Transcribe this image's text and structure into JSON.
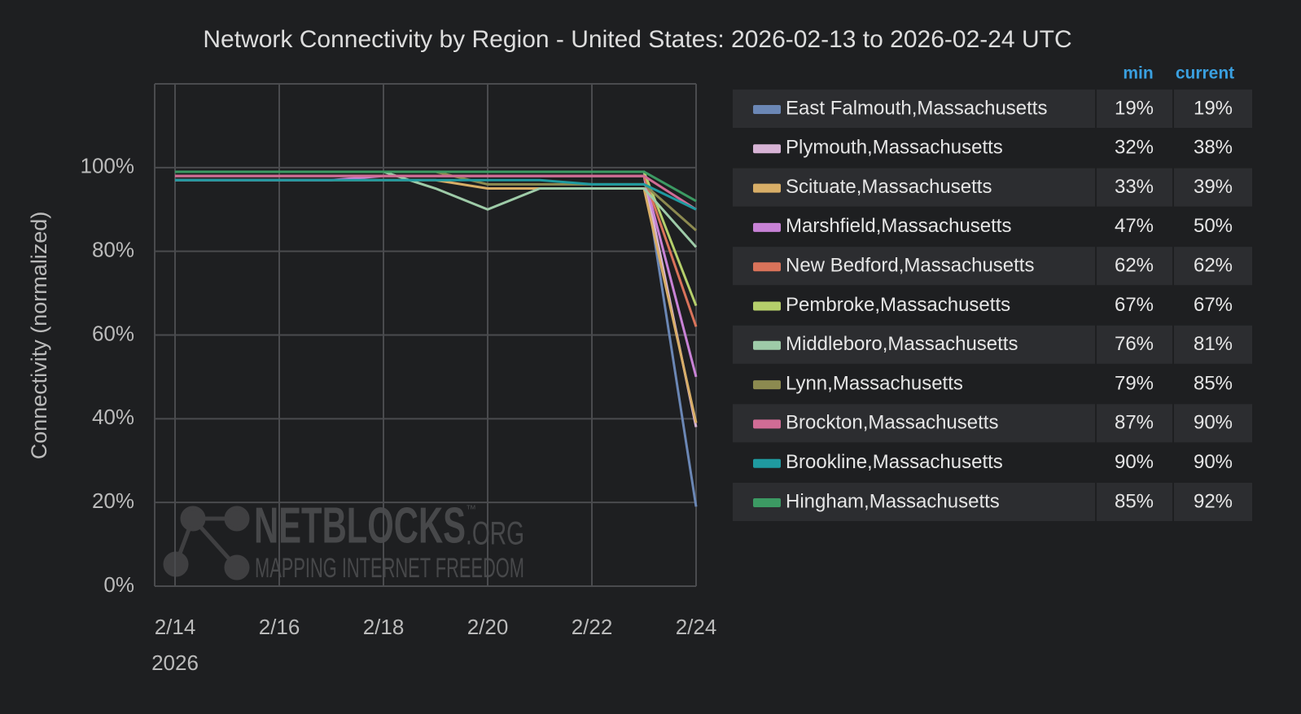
{
  "chart_data": {
    "type": "line",
    "title": "Network Connectivity by Region - United States: 2026-02-13 to 2026-02-24 UTC",
    "ylabel": "Connectivity (normalized)",
    "x_year_label": "2026",
    "x": [
      "2026-02-14",
      "2026-02-15",
      "2026-02-16",
      "2026-02-17",
      "2026-02-18",
      "2026-02-19",
      "2026-02-20",
      "2026-02-21",
      "2026-02-22",
      "2026-02-23",
      "2026-02-24"
    ],
    "xlim": [
      "2026-02-14",
      "2026-02-24"
    ],
    "xticks": [
      {
        "value": "2026-02-14",
        "label": "2/14"
      },
      {
        "value": "2026-02-16",
        "label": "2/16"
      },
      {
        "value": "2026-02-18",
        "label": "2/18"
      },
      {
        "value": "2026-02-20",
        "label": "2/20"
      },
      {
        "value": "2026-02-22",
        "label": "2/22"
      },
      {
        "value": "2026-02-24",
        "label": "2/24"
      }
    ],
    "ylim": [
      0,
      120
    ],
    "yticks": [
      {
        "value": 0,
        "label": "0%"
      },
      {
        "value": 20,
        "label": "20%"
      },
      {
        "value": 40,
        "label": "40%"
      },
      {
        "value": 60,
        "label": "60%"
      },
      {
        "value": 80,
        "label": "80%"
      },
      {
        "value": 100,
        "label": "100%"
      }
    ],
    "grid": true,
    "legend_columns": [
      "min",
      "current"
    ],
    "watermark": {
      "name": "NETBLOCKS",
      "tm": "™",
      "suffix": ".ORG",
      "tagline": "MAPPING INTERNET FREEDOM"
    },
    "series": [
      {
        "name": "East Falmouth,Massachusetts",
        "color": "#6b87b5",
        "min": "19%",
        "current": "19%",
        "values": [
          99,
          99,
          99,
          99,
          99,
          99,
          99,
          99,
          99,
          99,
          19
        ]
      },
      {
        "name": "Plymouth,Massachusetts",
        "color": "#d7b3d5",
        "min": "32%",
        "current": "38%",
        "values": [
          98,
          98,
          98,
          98,
          98,
          98,
          98,
          98,
          98,
          98,
          38
        ]
      },
      {
        "name": "Scituate,Massachusetts",
        "color": "#d8ae67",
        "min": "33%",
        "current": "39%",
        "values": [
          97,
          97,
          97,
          97,
          97,
          97,
          95,
          95,
          95,
          95,
          39
        ]
      },
      {
        "name": "Marshfield,Massachusetts",
        "color": "#c882d6",
        "min": "47%",
        "current": "50%",
        "values": [
          97,
          97,
          97,
          97,
          98,
          98,
          98,
          98,
          98,
          98,
          50
        ]
      },
      {
        "name": "New Bedford,Massachusetts",
        "color": "#d9735a",
        "min": "62%",
        "current": "62%",
        "values": [
          98,
          98,
          98,
          98,
          98,
          98,
          98,
          98,
          98,
          98,
          62
        ]
      },
      {
        "name": "Pembroke,Massachusetts",
        "color": "#b5cf6b",
        "min": "67%",
        "current": "67%",
        "values": [
          99,
          99,
          99,
          99,
          99,
          99,
          99,
          99,
          99,
          99,
          67
        ]
      },
      {
        "name": "Middleboro,Massachusetts",
        "color": "#9ecba8",
        "min": "76%",
        "current": "81%",
        "values": [
          99,
          99,
          99,
          99,
          99,
          95,
          90,
          95,
          95,
          95,
          81
        ]
      },
      {
        "name": "Lynn,Massachusetts",
        "color": "#8c8a50",
        "min": "79%",
        "current": "85%",
        "values": [
          99,
          99,
          99,
          99,
          99,
          99,
          96,
          96,
          96,
          96,
          85
        ]
      },
      {
        "name": "Brockton,Massachusetts",
        "color": "#d06c95",
        "min": "87%",
        "current": "90%",
        "values": [
          98,
          98,
          98,
          98,
          98,
          98,
          98,
          98,
          98,
          98,
          90
        ]
      },
      {
        "name": "Brookline,Massachusetts",
        "color": "#1f9aa0",
        "min": "90%",
        "current": "90%",
        "values": [
          97,
          97,
          97,
          97,
          97,
          97,
          97,
          97,
          96,
          96,
          90
        ]
      },
      {
        "name": "Hingham,Massachusetts",
        "color": "#3c9a63",
        "min": "85%",
        "current": "92%",
        "values": [
          99,
          99,
          99,
          99,
          99,
          99,
          99,
          99,
          99,
          99,
          92
        ]
      }
    ]
  }
}
